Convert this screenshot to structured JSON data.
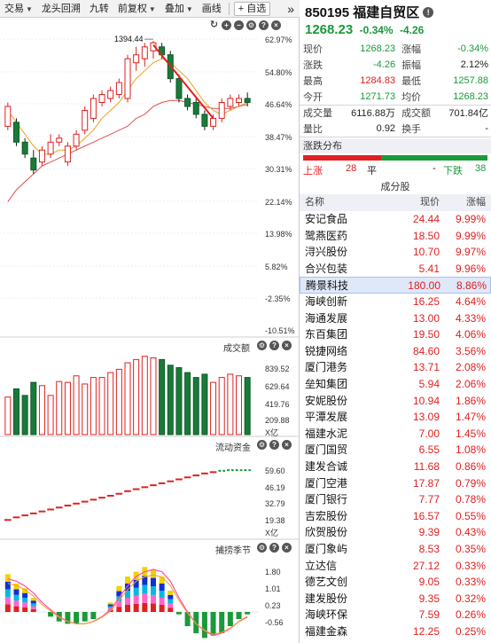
{
  "toolbar": {
    "items": [
      "交易",
      "龙头回溯",
      "九转",
      "前复权",
      "叠加",
      "画线"
    ],
    "add_label": "+ 自选",
    "more": "»"
  },
  "main_chart": {
    "peak_label": "1394.44",
    "y_labels": [
      "62.97%",
      "54.80%",
      "46.64%",
      "38.47%",
      "30.31%",
      "22.14%",
      "13.98%",
      "5.82%",
      "-2.35%",
      "-10.51%"
    ]
  },
  "volume_panel": {
    "title": "成交额",
    "y_labels": [
      "839.52",
      "629.64",
      "419.76",
      "209.88",
      "X亿"
    ]
  },
  "flow_panel": {
    "title": "流动资金",
    "y_labels": [
      "59.60",
      "46.19",
      "32.79",
      "19.38",
      "X亿"
    ]
  },
  "season_panel": {
    "title": "捕捞季节",
    "y_labels": [
      "1.80",
      "1.01",
      "0.23",
      "-0.56"
    ]
  },
  "chart_data": [
    {
      "type": "candlestick",
      "title": "",
      "peak_value": 1394.44,
      "ylim_pct": [
        -10.51,
        62.97
      ],
      "candles": [
        {
          "o": 41,
          "c": 46,
          "h": 47,
          "l": 40
        },
        {
          "o": 42,
          "c": 37,
          "h": 43,
          "l": 36
        },
        {
          "o": 37,
          "c": 34,
          "h": 38,
          "l": 33
        },
        {
          "o": 33,
          "c": 30,
          "h": 35,
          "l": 29
        },
        {
          "o": 32,
          "c": 35,
          "h": 36,
          "l": 31
        },
        {
          "o": 34,
          "c": 37,
          "h": 39,
          "l": 33
        },
        {
          "o": 37,
          "c": 38,
          "h": 39,
          "l": 36
        },
        {
          "o": 32,
          "c": 36,
          "h": 37,
          "l": 31
        },
        {
          "o": 36,
          "c": 39,
          "h": 40,
          "l": 35
        },
        {
          "o": 40,
          "c": 45,
          "h": 46,
          "l": 39
        },
        {
          "o": 43,
          "c": 48,
          "h": 49,
          "l": 42
        },
        {
          "o": 47,
          "c": 49,
          "h": 50,
          "l": 46
        },
        {
          "o": 48,
          "c": 50,
          "h": 51,
          "l": 47
        },
        {
          "o": 49,
          "c": 52,
          "h": 53,
          "l": 48
        },
        {
          "o": 48,
          "c": 58,
          "h": 59,
          "l": 47
        },
        {
          "o": 57,
          "c": 59,
          "h": 61,
          "l": 55
        },
        {
          "o": 58,
          "c": 61,
          "h": 62,
          "l": 56
        },
        {
          "o": 60,
          "c": 62,
          "h": 62.5,
          "l": 58
        },
        {
          "o": 61,
          "c": 59,
          "h": 62,
          "l": 58
        },
        {
          "o": 59,
          "c": 53,
          "h": 60,
          "l": 52
        },
        {
          "o": 53,
          "c": 48,
          "h": 54,
          "l": 47
        },
        {
          "o": 48,
          "c": 46,
          "h": 49,
          "l": 45
        },
        {
          "o": 47,
          "c": 44,
          "h": 48,
          "l": 43
        },
        {
          "o": 44,
          "c": 41,
          "h": 45,
          "l": 40
        },
        {
          "o": 41,
          "c": 43,
          "h": 44,
          "l": 40
        },
        {
          "o": 43,
          "c": 47,
          "h": 48,
          "l": 42
        },
        {
          "o": 46,
          "c": 48,
          "h": 49,
          "l": 45
        },
        {
          "o": 47,
          "c": 48,
          "h": 49,
          "l": 46
        },
        {
          "o": 48,
          "c": 47,
          "h": 49.5,
          "l": 46
        }
      ],
      "ma_short": [
        45,
        42,
        39,
        36,
        34,
        34,
        35,
        35,
        36,
        38,
        40,
        43,
        45,
        47,
        50,
        53,
        55,
        57,
        58,
        57,
        55,
        53,
        50,
        47,
        45,
        44,
        45,
        46,
        47
      ],
      "ma_long": [
        22,
        25,
        27,
        29,
        31,
        32,
        33,
        34,
        35,
        36,
        37,
        38,
        39,
        40,
        41,
        43,
        44,
        46,
        47,
        47.5,
        47.5,
        47,
        46.5,
        46,
        45.5,
        45.5,
        45.5,
        46,
        46.5
      ],
      "trend_line": [
        [
          17,
          61.5
        ],
        [
          24,
          43
        ]
      ]
    },
    {
      "type": "bar",
      "title": "成交额",
      "unit": "亿",
      "ylim": [
        0,
        1000
      ],
      "values": [
        460,
        560,
        480,
        640,
        600,
        480,
        650,
        640,
        720,
        620,
        700,
        700,
        760,
        800,
        880,
        920,
        960,
        940,
        920,
        850,
        820,
        760,
        700,
        740,
        640,
        700,
        740,
        720,
        700
      ]
    },
    {
      "type": "line",
      "title": "流动资金",
      "unit": "亿",
      "ylim": [
        10,
        75
      ],
      "values": [
        22,
        24,
        25.5,
        27,
        28.5,
        30,
        31.5,
        33,
        34.5,
        36,
        37.5,
        39,
        40.5,
        42,
        44,
        45.5,
        47,
        48.5,
        50,
        51.5,
        53,
        54.5,
        56,
        57.5,
        58.5,
        59.5,
        60,
        60,
        60
      ]
    },
    {
      "type": "bar",
      "title": "捕捞季节",
      "ylim": [
        -1.2,
        2.4
      ],
      "values": [
        1.6,
        1.2,
        1.0,
        0.6,
        0.0,
        -0.2,
        -0.4,
        -0.5,
        -0.5,
        -0.4,
        -0.3,
        0.0,
        0.4,
        1.1,
        1.5,
        1.7,
        1.9,
        1.8,
        1.5,
        0.9,
        -0.1,
        -0.6,
        -0.9,
        -1.1,
        -1.0,
        -0.9,
        -0.6,
        -0.3,
        -0.1
      ],
      "signal": [
        1.4,
        1.3,
        1.1,
        0.8,
        0.4,
        0.1,
        -0.2,
        -0.4,
        -0.5,
        -0.5,
        -0.4,
        -0.2,
        0.1,
        0.6,
        1.1,
        1.5,
        1.7,
        1.8,
        1.7,
        1.3,
        0.6,
        0.0,
        -0.5,
        -0.8,
        -1.0,
        -0.9,
        -0.7,
        -0.4,
        -0.2
      ]
    }
  ],
  "quote": {
    "code_name": "850195 福建自贸区",
    "price": "1268.23",
    "change_pct": "-0.34%",
    "change": "-4.26",
    "rows": [
      [
        {
          "k": "现价",
          "v": "1268.23",
          "c": "green"
        },
        {
          "k": "涨幅",
          "v": "-0.34%",
          "c": "green"
        }
      ],
      [
        {
          "k": "涨跌",
          "v": "-4.26",
          "c": "green"
        },
        {
          "k": "振幅",
          "v": "2.12%",
          "c": "dark"
        }
      ],
      [
        {
          "k": "最高",
          "v": "1284.83",
          "c": "red"
        },
        {
          "k": "最低",
          "v": "1257.88",
          "c": "green"
        }
      ],
      [
        {
          "k": "今开",
          "v": "1271.73",
          "c": "green"
        },
        {
          "k": "均价",
          "v": "1268.23",
          "c": "green"
        }
      ],
      [
        {
          "k": "成交量",
          "v": "6116.88万",
          "c": "dark"
        },
        {
          "k": "成交额",
          "v": "701.84亿",
          "c": "dark"
        }
      ],
      [
        {
          "k": "量比",
          "v": "0.92",
          "c": "dark"
        },
        {
          "k": "换手",
          "v": "-",
          "c": "dark"
        }
      ]
    ]
  },
  "distribution": {
    "title": "涨跌分布",
    "up_label": "上涨",
    "up_count": 28,
    "flat_label": "平",
    "flat_count": 0,
    "flat_display": "-",
    "down_label": "下跌",
    "down_count": 38,
    "up_color": "#e02020",
    "flat_color": "#999999",
    "down_color": "#1a9a3a"
  },
  "components": {
    "title": "成分股",
    "headers": [
      "名称",
      "现价",
      "涨幅"
    ],
    "selected_index": 4,
    "rows": [
      {
        "name": "安记食品",
        "price": "24.44",
        "pct": "9.99%"
      },
      {
        "name": "鹭燕医药",
        "price": "18.50",
        "pct": "9.99%"
      },
      {
        "name": "浔兴股份",
        "price": "10.70",
        "pct": "9.97%"
      },
      {
        "name": "合兴包装",
        "price": "5.41",
        "pct": "9.96%"
      },
      {
        "name": "腾景科技",
        "price": "180.00",
        "pct": "8.86%"
      },
      {
        "name": "海峡创新",
        "price": "16.25",
        "pct": "4.64%"
      },
      {
        "name": "海通发展",
        "price": "13.00",
        "pct": "4.33%"
      },
      {
        "name": "东百集团",
        "price": "19.50",
        "pct": "4.06%"
      },
      {
        "name": "锐捷网络",
        "price": "84.60",
        "pct": "3.56%"
      },
      {
        "name": "厦门港务",
        "price": "13.71",
        "pct": "2.08%"
      },
      {
        "name": "垒知集团",
        "price": "5.94",
        "pct": "2.06%"
      },
      {
        "name": "安妮股份",
        "price": "10.94",
        "pct": "1.86%"
      },
      {
        "name": "平潭发展",
        "price": "13.09",
        "pct": "1.47%"
      },
      {
        "name": "福建水泥",
        "price": "7.00",
        "pct": "1.45%"
      },
      {
        "name": "厦门国贸",
        "price": "6.55",
        "pct": "1.08%"
      },
      {
        "name": "建发合诚",
        "price": "11.68",
        "pct": "0.86%"
      },
      {
        "name": "厦门空港",
        "price": "17.87",
        "pct": "0.79%"
      },
      {
        "name": "厦门银行",
        "price": "7.77",
        "pct": "0.78%"
      },
      {
        "name": "吉宏股份",
        "price": "16.57",
        "pct": "0.55%"
      },
      {
        "name": "欣贺股份",
        "price": "9.39",
        "pct": "0.43%"
      },
      {
        "name": "厦门象屿",
        "price": "8.53",
        "pct": "0.35%"
      },
      {
        "name": "立达信",
        "price": "27.12",
        "pct": "0.33%"
      },
      {
        "name": "德艺文创",
        "price": "9.05",
        "pct": "0.33%"
      },
      {
        "name": "建发股份",
        "price": "9.35",
        "pct": "0.32%"
      },
      {
        "name": "海峡环保",
        "price": "7.59",
        "pct": "0.26%"
      },
      {
        "name": "福建金森",
        "price": "12.25",
        "pct": "0.25%"
      }
    ]
  },
  "colors": {
    "up": "#e02020",
    "down": "#1a9a3a",
    "ma_short": "#f0a020",
    "ma_long": "#e05050",
    "trend": "#e02020"
  }
}
